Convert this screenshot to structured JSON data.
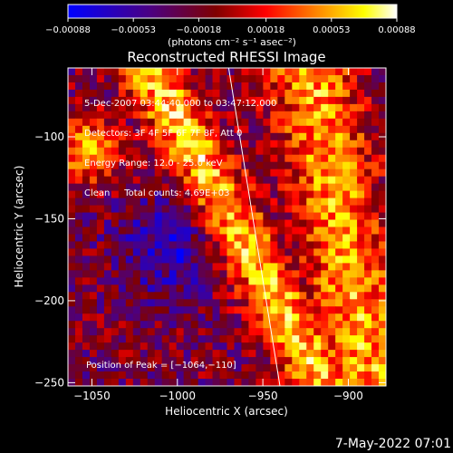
{
  "chart_data": {
    "type": "heatmap",
    "title": "Reconstructed RHESSI Image",
    "xlabel": "Heliocentric X (arcsec)",
    "ylabel": "Heliocentric Y (arcsec)",
    "xlim": [
      -1064,
      -878
    ],
    "ylim": [
      -252,
      -58
    ],
    "xticks": [
      -1050,
      -1000,
      -950,
      -900
    ],
    "yticks": [
      -100,
      -150,
      -200,
      -250
    ],
    "xtick_labels": [
      "−1050",
      "−1000",
      "−950",
      "−900"
    ],
    "ytick_labels": [
      "−100",
      "−150",
      "−200",
      "−250"
    ],
    "colorbar": {
      "ticks": [
        -0.00088,
        -0.00053,
        -0.00018,
        0.00018,
        0.00053,
        0.00088
      ],
      "tick_labels": [
        "−0.00088",
        "−0.00053",
        "−0.00018",
        "0.00018",
        "0.00053",
        "0.00088"
      ],
      "label": "(photons cm⁻² s⁻¹ asec⁻²)",
      "range": [
        -0.00088,
        0.00088
      ],
      "colors": [
        "#0000ff",
        "#4b0082",
        "#800000",
        "#ff0000",
        "#ff8000",
        "#ffff00",
        "#ffffff"
      ]
    },
    "annotations": [
      "5-Dec-2007 03:44:40.000 to 03:47:12.000",
      "Detectors: 3F 4F 5F 6F 7F 8F, Att 0",
      "Energy Range: 12.0 - 25.0 keV",
      "Clean     Total counts: 4.69E+03"
    ],
    "peak_text": "Position of Peak = [−1064,−110]",
    "limb_line": {
      "x": [
        -970,
        -940
      ],
      "y": [
        -58,
        -252
      ]
    },
    "grid": false
  },
  "footer": {
    "timestamp": "7-May-2022 07:01"
  }
}
